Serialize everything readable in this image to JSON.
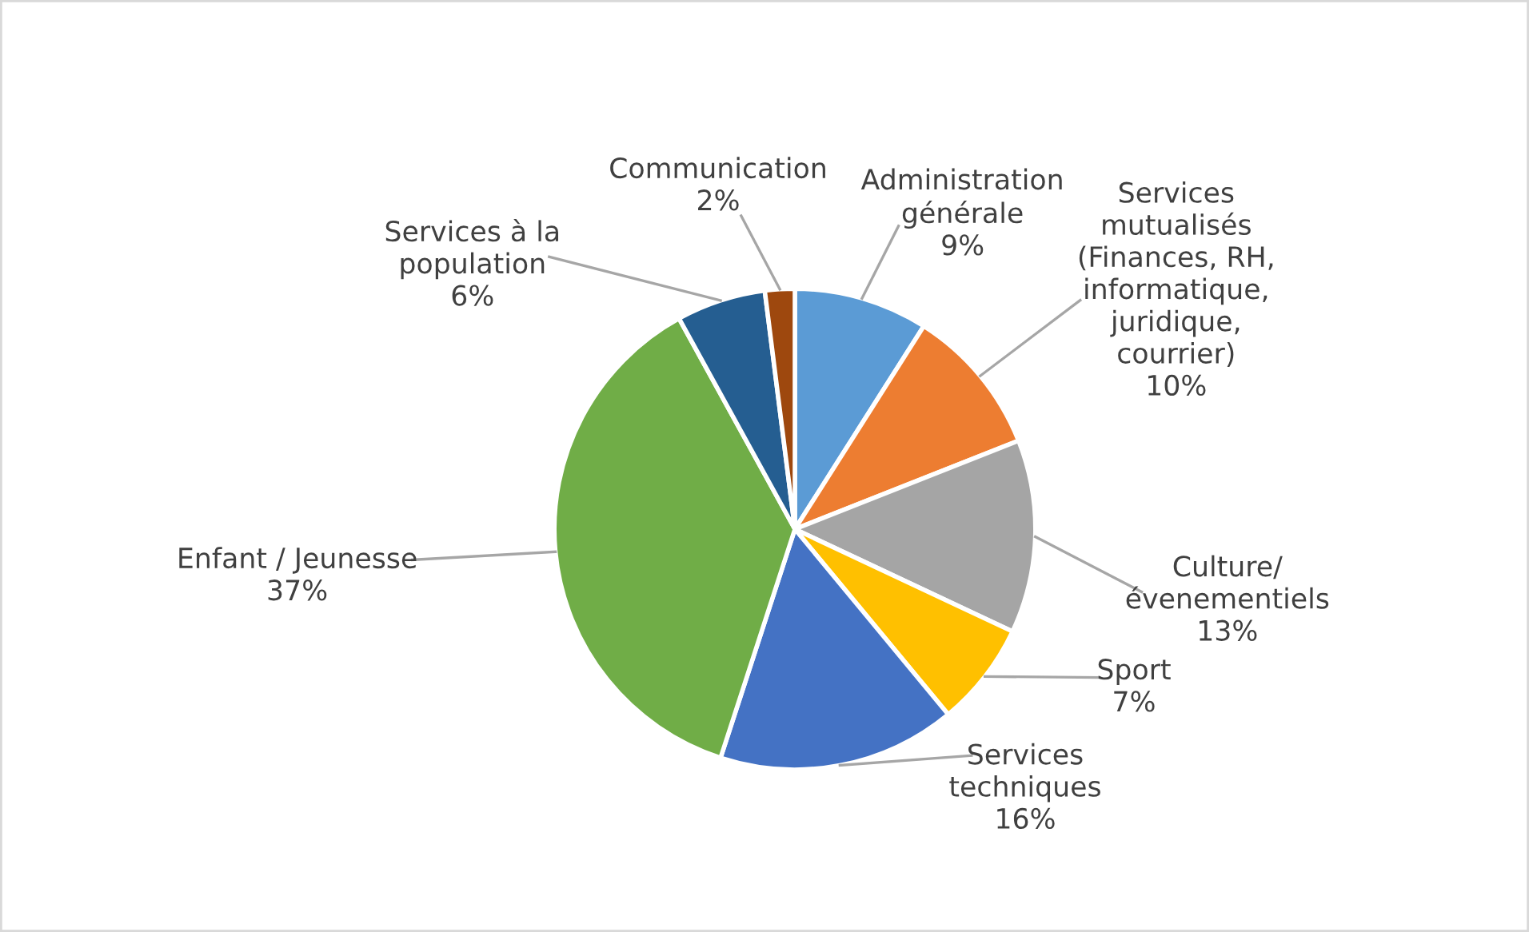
{
  "chart_data": {
    "type": "pie",
    "categories": [
      "Administration\ngénérale",
      "Services\nmutualisés\n(Finances, RH,\ninformatique,\njuridique,\ncourrier)",
      "Culture/\névenementiels",
      "Sport",
      "Services\ntechniques",
      "Enfant / Jeunesse",
      "Services à la\npopulation",
      "Communication"
    ],
    "values": [
      9,
      10,
      13,
      7,
      16,
      37,
      6,
      2
    ],
    "value_labels": [
      "9%",
      "10%",
      "13%",
      "7%",
      "16%",
      "37%",
      "6%",
      "2%"
    ],
    "colors": [
      "#5b9bd5",
      "#ed7d31",
      "#a5a5a5",
      "#ffc000",
      "#4472c4",
      "#70ad47",
      "#255e91",
      "#9e480e"
    ]
  }
}
